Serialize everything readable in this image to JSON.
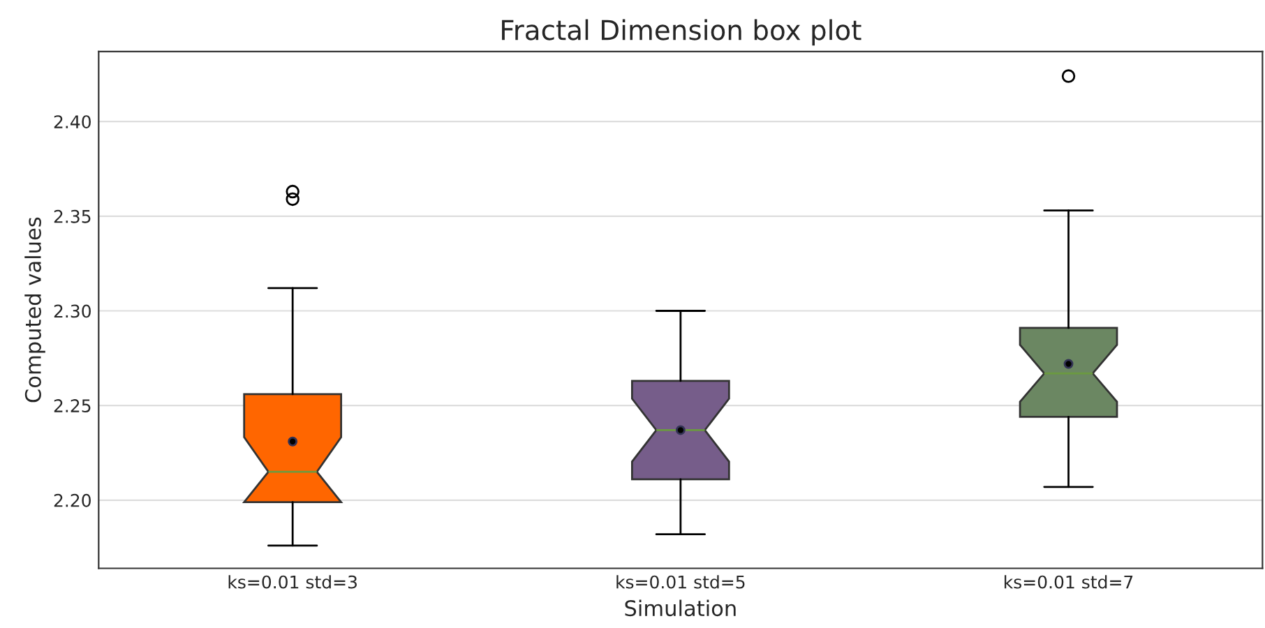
{
  "chart_data": {
    "type": "box",
    "title": "Fractal Dimension box plot",
    "xlabel": "Simulation",
    "ylabel": "Computed values",
    "categories": [
      "ks=0.01 std=3",
      "ks=0.01 std=5",
      "ks=0.01 std=7"
    ],
    "colors": [
      "#ff6600",
      "#765d8a",
      "#6b8762"
    ],
    "boxes": [
      {
        "low": 2.176,
        "q1": 2.199,
        "median": 2.215,
        "q3": 2.256,
        "high": 2.312,
        "mean": 2.231,
        "outliers": [
          2.359,
          2.363
        ]
      },
      {
        "low": 2.182,
        "q1": 2.211,
        "median": 2.237,
        "q3": 2.263,
        "high": 2.3,
        "mean": 2.237
      },
      {
        "low": 2.207,
        "q1": 2.244,
        "median": 2.267,
        "q3": 2.291,
        "high": 2.353,
        "mean": 2.272,
        "outliers": [
          2.424
        ]
      }
    ],
    "ylim": [
      2.164,
      2.437
    ],
    "yticks": [
      {
        "value": 2.2,
        "label": "2.20"
      },
      2.25,
      {
        "value": 2.3,
        "label": "2.30"
      },
      2.35,
      {
        "value": 2.4,
        "label": "2.40"
      }
    ],
    "grid": "y",
    "legend": false
  }
}
